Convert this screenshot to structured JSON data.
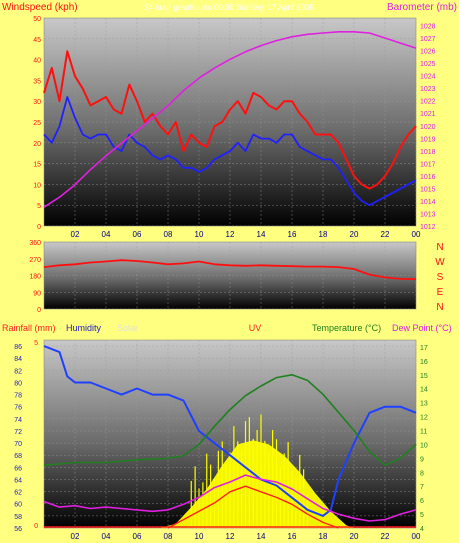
{
  "colors": {
    "background": "#ffff80",
    "wind": "#ff1010",
    "wind_avg": "#2020ff",
    "barometer": "#e020e0",
    "direction": "#ff1010",
    "humidity": "#2040ff",
    "temperature": "#208020",
    "dewpoint": "#e020e0",
    "solar": "#ffff00",
    "uv": "#ff2020",
    "rainfall": "#ff2020",
    "axis_text_left": "#ff1010",
    "axis_text_right": "#e020e0",
    "subtitle": "#ffffff"
  },
  "top_panel": {
    "title_left": "Windspeed (kph)",
    "subtitle": "24 hour graph upto 00:00 Sunday, 17 April 2005",
    "title_right": "Barometer (mb)"
  },
  "bottom_panel": {
    "label_rainfall": "Rainfall (mm)",
    "label_humidity": "Humidity",
    "label_solar": "Solar",
    "label_uv": "UV",
    "label_temperature": "Temperature (°C)",
    "label_dewpoint": "Dew Point (°C)"
  },
  "chart_data": [
    {
      "type": "line",
      "name": "wind-barometer",
      "x_ticks": [
        "02",
        "04",
        "06",
        "08",
        "10",
        "12",
        "14",
        "16",
        "18",
        "20",
        "22",
        "00"
      ],
      "y_left_ticks": [
        0,
        5,
        10,
        15,
        20,
        25,
        30,
        35,
        40,
        45,
        50
      ],
      "y_right_ticks": [
        1012,
        1013,
        1014,
        1015,
        1016,
        1017,
        1018,
        1019,
        1020,
        1021,
        1022,
        1023,
        1024,
        1025,
        1026,
        1027,
        1028
      ],
      "ylim_left": [
        0,
        50
      ],
      "ylim_right": [
        1012,
        1028.6
      ],
      "series": [
        {
          "key": "wind_gust",
          "axis": "left",
          "points": [
            [
              0,
              32
            ],
            [
              0.5,
              38
            ],
            [
              1,
              30
            ],
            [
              1.5,
              42
            ],
            [
              2,
              36
            ],
            [
              2.5,
              33
            ],
            [
              3,
              29
            ],
            [
              3.5,
              30
            ],
            [
              4,
              31
            ],
            [
              4.5,
              28
            ],
            [
              5,
              27
            ],
            [
              5.5,
              34
            ],
            [
              6,
              30
            ],
            [
              6.5,
              25
            ],
            [
              7,
              27
            ],
            [
              7.5,
              24
            ],
            [
              8,
              22
            ],
            [
              8.5,
              25
            ],
            [
              9,
              18
            ],
            [
              9.5,
              22
            ],
            [
              10,
              20
            ],
            [
              10.5,
              19
            ],
            [
              11,
              24
            ],
            [
              11.5,
              25
            ],
            [
              12,
              28
            ],
            [
              12.5,
              30
            ],
            [
              13,
              27
            ],
            [
              13.5,
              32
            ],
            [
              14,
              31
            ],
            [
              14.5,
              29
            ],
            [
              15,
              28
            ],
            [
              15.5,
              30
            ],
            [
              16,
              30
            ],
            [
              16.5,
              27
            ],
            [
              17,
              25
            ],
            [
              17.5,
              22
            ],
            [
              18,
              22
            ],
            [
              18.5,
              22
            ],
            [
              19,
              20
            ],
            [
              19.5,
              16
            ],
            [
              20,
              12
            ],
            [
              20.5,
              10
            ],
            [
              21,
              9
            ],
            [
              21.5,
              10
            ],
            [
              22,
              12
            ],
            [
              22.5,
              15
            ],
            [
              23,
              19
            ],
            [
              23.5,
              22
            ],
            [
              24,
              24
            ]
          ]
        },
        {
          "key": "wind_avg",
          "axis": "left",
          "points": [
            [
              0,
              22
            ],
            [
              0.5,
              20
            ],
            [
              1,
              24
            ],
            [
              1.5,
              31
            ],
            [
              2,
              26
            ],
            [
              2.5,
              22
            ],
            [
              3,
              21
            ],
            [
              3.5,
              22
            ],
            [
              4,
              22
            ],
            [
              4.5,
              19
            ],
            [
              5,
              18
            ],
            [
              5.5,
              22
            ],
            [
              6,
              20
            ],
            [
              6.5,
              19
            ],
            [
              7,
              17
            ],
            [
              7.5,
              16
            ],
            [
              8,
              17
            ],
            [
              8.5,
              16
            ],
            [
              9,
              14
            ],
            [
              9.5,
              14
            ],
            [
              10,
              13
            ],
            [
              10.5,
              14
            ],
            [
              11,
              16
            ],
            [
              11.5,
              17
            ],
            [
              12,
              18
            ],
            [
              12.5,
              20
            ],
            [
              13,
              18
            ],
            [
              13.5,
              22
            ],
            [
              14,
              21
            ],
            [
              14.5,
              21
            ],
            [
              15,
              20
            ],
            [
              15.5,
              22
            ],
            [
              16,
              22
            ],
            [
              16.5,
              19
            ],
            [
              17,
              18
            ],
            [
              17.5,
              17
            ],
            [
              18,
              16
            ],
            [
              18.5,
              16
            ],
            [
              19,
              14
            ],
            [
              19.5,
              11
            ],
            [
              20,
              8
            ],
            [
              20.5,
              6
            ],
            [
              21,
              5
            ],
            [
              21.5,
              6
            ],
            [
              22,
              7
            ],
            [
              22.5,
              8
            ],
            [
              23,
              9
            ],
            [
              23.5,
              10
            ],
            [
              24,
              11
            ]
          ]
        },
        {
          "key": "barometer",
          "axis": "right",
          "points": [
            [
              0,
              1013.5
            ],
            [
              1,
              1014.3
            ],
            [
              2,
              1015.3
            ],
            [
              3,
              1016.5
            ],
            [
              4,
              1017.6
            ],
            [
              5,
              1018.6
            ],
            [
              6,
              1019.6
            ],
            [
              7,
              1020.6
            ],
            [
              8,
              1021.6
            ],
            [
              9,
              1022.8
            ],
            [
              10,
              1023.8
            ],
            [
              11,
              1024.6
            ],
            [
              12,
              1025.3
            ],
            [
              13,
              1025.9
            ],
            [
              14,
              1026.4
            ],
            [
              15,
              1026.8
            ],
            [
              16,
              1027.1
            ],
            [
              17,
              1027.3
            ],
            [
              18,
              1027.4
            ],
            [
              19,
              1027.5
            ],
            [
              20,
              1027.5
            ],
            [
              21,
              1027.4
            ],
            [
              22,
              1027.0
            ],
            [
              23,
              1026.6
            ],
            [
              24,
              1026.2
            ]
          ]
        }
      ]
    },
    {
      "type": "line",
      "name": "wind-direction",
      "y_ticks": [
        0,
        90,
        180,
        270,
        360
      ],
      "y_right_labels": [
        "N",
        "W",
        "S",
        "E",
        "N"
      ],
      "ylim": [
        0,
        360
      ],
      "series": [
        {
          "key": "direction",
          "points": [
            [
              0,
              225
            ],
            [
              1,
              235
            ],
            [
              2,
              240
            ],
            [
              3,
              250
            ],
            [
              4,
              255
            ],
            [
              5,
              262
            ],
            [
              6,
              258
            ],
            [
              7,
              250
            ],
            [
              8,
              240
            ],
            [
              9,
              245
            ],
            [
              10,
              255
            ],
            [
              11,
              240
            ],
            [
              12,
              235
            ],
            [
              13,
              232
            ],
            [
              14,
              235
            ],
            [
              15,
              232
            ],
            [
              16,
              230
            ],
            [
              17,
              228
            ],
            [
              18,
              228
            ],
            [
              19,
              225
            ],
            [
              20,
              215
            ],
            [
              21,
              185
            ],
            [
              22,
              170
            ],
            [
              23,
              162
            ],
            [
              24,
              160
            ]
          ]
        }
      ]
    },
    {
      "type": "line",
      "name": "humidity-temperature",
      "y_left_ticks": [
        56,
        58,
        60,
        62,
        64,
        66,
        68,
        70,
        72,
        74,
        76,
        78,
        80,
        82,
        84,
        86
      ],
      "y_right_ticks": [
        4,
        5,
        6,
        7,
        8,
        9,
        10,
        11,
        12,
        13,
        14,
        15,
        16,
        17
      ],
      "y_rain_ticks": [
        0,
        5
      ],
      "ylim_left": [
        56,
        87
      ],
      "ylim_right": [
        4,
        17.5
      ],
      "series": [
        {
          "key": "humidity",
          "axis": "left",
          "points": [
            [
              0,
              86
            ],
            [
              1,
              85
            ],
            [
              1.5,
              81
            ],
            [
              2,
              80
            ],
            [
              3,
              80
            ],
            [
              4,
              79
            ],
            [
              5,
              78
            ],
            [
              6,
              79
            ],
            [
              7,
              78
            ],
            [
              8,
              78
            ],
            [
              9,
              77
            ],
            [
              10,
              72
            ],
            [
              11,
              70
            ],
            [
              12,
              68
            ],
            [
              13,
              66
            ],
            [
              14,
              64
            ],
            [
              15,
              63
            ],
            [
              16,
              61
            ],
            [
              17,
              59
            ],
            [
              18,
              58
            ],
            [
              18.5,
              59
            ],
            [
              19,
              64
            ],
            [
              20,
              70
            ],
            [
              21,
              75
            ],
            [
              22,
              76
            ],
            [
              23,
              76
            ],
            [
              24,
              75
            ]
          ]
        },
        {
          "key": "temperature",
          "axis": "right",
          "points": [
            [
              0,
              8.5
            ],
            [
              2,
              8.7
            ],
            [
              4,
              8.7
            ],
            [
              6,
              8.9
            ],
            [
              8,
              9
            ],
            [
              9,
              9.2
            ],
            [
              10,
              10
            ],
            [
              11,
              11.3
            ],
            [
              12,
              12.5
            ],
            [
              13,
              13.5
            ],
            [
              14,
              14.2
            ],
            [
              15,
              14.8
            ],
            [
              16,
              15
            ],
            [
              17,
              14.6
            ],
            [
              18,
              13.6
            ],
            [
              19,
              12.3
            ],
            [
              20,
              11
            ],
            [
              21,
              9.5
            ],
            [
              22,
              8.5
            ],
            [
              23,
              9
            ],
            [
              24,
              10
            ]
          ]
        },
        {
          "key": "dewpoint",
          "axis": "right",
          "points": [
            [
              0,
              5.9
            ],
            [
              1,
              5.5
            ],
            [
              2,
              5.6
            ],
            [
              3,
              5.4
            ],
            [
              4,
              5.5
            ],
            [
              5,
              5.4
            ],
            [
              6,
              5.3
            ],
            [
              7,
              5.2
            ],
            [
              8,
              5.3
            ],
            [
              9,
              5.7
            ],
            [
              10,
              6.2
            ],
            [
              11,
              6.9
            ],
            [
              12,
              7.3
            ],
            [
              13,
              7.8
            ],
            [
              14,
              7.5
            ],
            [
              15,
              7.3
            ],
            [
              16,
              6.8
            ],
            [
              17,
              6.1
            ],
            [
              18,
              5.4
            ],
            [
              19,
              5.0
            ],
            [
              20,
              4.7
            ],
            [
              21,
              4.5
            ],
            [
              22,
              4.6
            ],
            [
              23,
              5
            ],
            [
              24,
              5.3
            ]
          ]
        },
        {
          "key": "solar",
          "axis": "right",
          "type": "area",
          "points": [
            [
              7.5,
              4
            ],
            [
              8.5,
              4.3
            ],
            [
              9.5,
              5.5
            ],
            [
              10.5,
              6.8
            ],
            [
              11.5,
              8.5
            ],
            [
              12.5,
              10
            ],
            [
              13.5,
              10.3
            ],
            [
              14.5,
              10
            ],
            [
              15.5,
              9.2
            ],
            [
              16.5,
              8
            ],
            [
              17.5,
              6.5
            ],
            [
              18.5,
              5.2
            ],
            [
              19.5,
              4.2
            ],
            [
              20,
              4
            ]
          ]
        },
        {
          "key": "uv",
          "axis": "right",
          "points": [
            [
              8,
              4
            ],
            [
              9,
              4.6
            ],
            [
              10,
              5.2
            ],
            [
              11,
              5.8
            ],
            [
              12,
              6.6
            ],
            [
              13,
              7
            ],
            [
              14,
              6.6
            ],
            [
              15,
              6.2
            ],
            [
              16,
              5.7
            ],
            [
              17,
              5
            ],
            [
              18,
              4.4
            ],
            [
              19,
              4.0
            ]
          ]
        }
      ]
    }
  ]
}
